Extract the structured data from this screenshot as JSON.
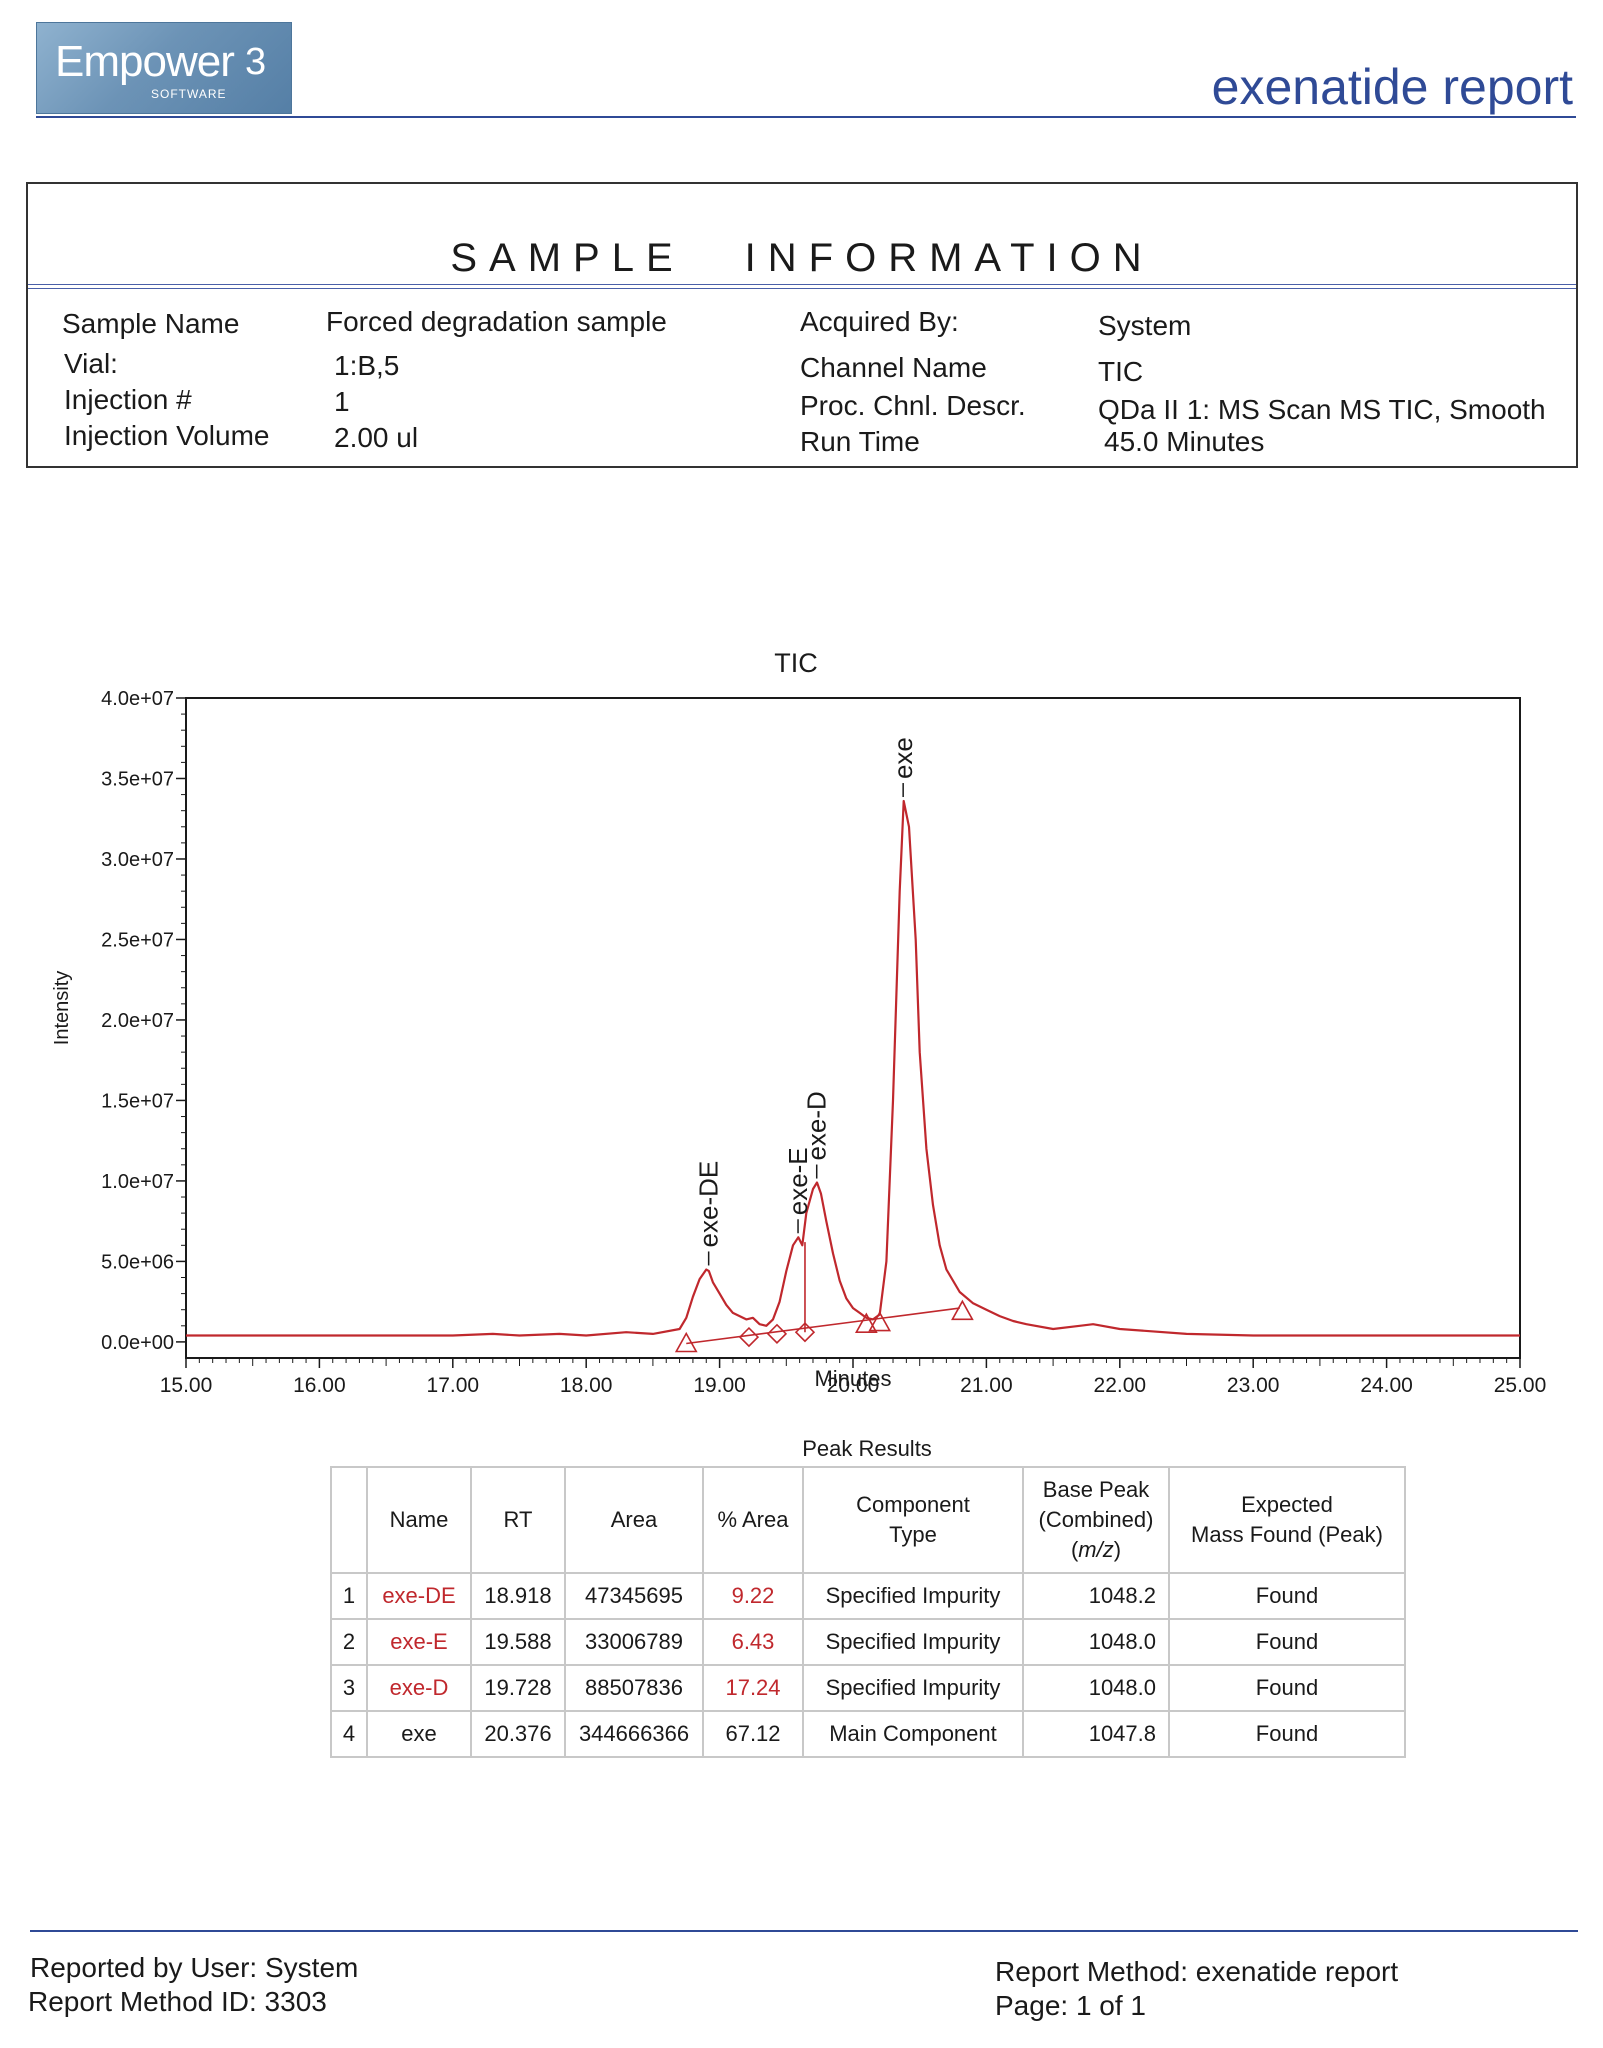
{
  "header": {
    "logo_brand": "Empower",
    "logo_version": "3",
    "logo_sub": "SOFTWARE",
    "report_title": "exenatide report"
  },
  "sample_info": {
    "title_word1": "SAMPLE",
    "title_word2": "INFORMATION",
    "left": [
      {
        "label": "Sample Name",
        "value": "Forced degradation sample"
      },
      {
        "label": "Vial:",
        "value": "1:B,5"
      },
      {
        "label": "Injection #",
        "value": "1"
      },
      {
        "label": "Injection Volume",
        "value": "2.00 ul"
      }
    ],
    "right": [
      {
        "label": "Acquired By:",
        "value": "System"
      },
      {
        "label": "Channel Name",
        "value": "TIC"
      },
      {
        "label": "Proc. Chnl. Descr.",
        "value": "QDa II 1: MS Scan MS TIC, Smooth"
      },
      {
        "label": "Run Time",
        "value": "45.0 Minutes"
      }
    ]
  },
  "chart_data": {
    "type": "line",
    "title": "TIC",
    "xlabel": "Minutes",
    "ylabel": "Intensity",
    "xlim": [
      15.0,
      25.0
    ],
    "ylim": [
      -1000000,
      40000000
    ],
    "x_ticks": [
      "15.00",
      "16.00",
      "17.00",
      "18.00",
      "19.00",
      "20.00",
      "21.00",
      "22.00",
      "23.00",
      "24.00",
      "25.00"
    ],
    "y_ticks": [
      "0.0e+00",
      "5.0e+06",
      "1.0e+07",
      "1.5e+07",
      "2.0e+07",
      "2.5e+07",
      "3.0e+07",
      "3.5e+07",
      "4.0e+07"
    ],
    "series": [
      {
        "color": "#c0282d",
        "x": [
          15.0,
          16.0,
          17.0,
          17.3,
          17.5,
          17.8,
          18.0,
          18.3,
          18.5,
          18.7,
          18.75,
          18.8,
          18.85,
          18.9,
          18.92,
          18.95,
          19.0,
          19.05,
          19.1,
          19.15,
          19.2,
          19.25,
          19.3,
          19.35,
          19.4,
          19.45,
          19.5,
          19.55,
          19.59,
          19.62,
          19.65,
          19.7,
          19.73,
          19.76,
          19.8,
          19.85,
          19.9,
          19.95,
          20.0,
          20.05,
          20.1,
          20.15,
          20.2,
          20.25,
          20.3,
          20.35,
          20.38,
          20.42,
          20.47,
          20.5,
          20.55,
          20.6,
          20.65,
          20.7,
          20.8,
          20.9,
          21.0,
          21.1,
          21.2,
          21.3,
          21.5,
          21.7,
          21.8,
          22.0,
          22.5,
          23.0,
          24.0,
          25.0
        ],
        "y": [
          400000,
          400000,
          400000,
          500000,
          400000,
          500000,
          400000,
          600000,
          500000,
          800000,
          1500000,
          2800000,
          3900000,
          4500000,
          4400000,
          3700000,
          3000000,
          2300000,
          1800000,
          1600000,
          1400000,
          1500000,
          1100000,
          1000000,
          1400000,
          2500000,
          4400000,
          6000000,
          6500000,
          6000000,
          8000000,
          9500000,
          9900000,
          9200000,
          7500000,
          5500000,
          3800000,
          2700000,
          2100000,
          1800000,
          1500000,
          1400000,
          1700000,
          5000000,
          15000000,
          28000000,
          33600000,
          32000000,
          25000000,
          18000000,
          12000000,
          8500000,
          6000000,
          4500000,
          3100000,
          2400000,
          2000000,
          1600000,
          1300000,
          1100000,
          800000,
          1000000,
          1100000,
          800000,
          500000,
          400000,
          400000,
          400000
        ]
      }
    ],
    "peak_labels": [
      {
        "name": "exe-DE",
        "x": 18.918,
        "y": 4500000
      },
      {
        "name": "exe-E",
        "x": 19.588,
        "y": 6500000
      },
      {
        "name": "exe-D",
        "x": 19.728,
        "y": 9900000
      },
      {
        "name": "exe",
        "x": 20.376,
        "y": 33600000
      }
    ],
    "baselines": [
      {
        "x": [
          18.75,
          20.8
        ],
        "y": [
          -100000,
          2100000
        ]
      }
    ],
    "drops": [
      {
        "x": 19.64,
        "y": 600000,
        "y_top": 6200000
      }
    ],
    "markers": [
      {
        "shape": "triangle",
        "x": 18.75,
        "y": -100000
      },
      {
        "shape": "diamond",
        "x": 19.22,
        "y": 300000
      },
      {
        "shape": "diamond",
        "x": 19.43,
        "y": 500000
      },
      {
        "shape": "diamond",
        "x": 19.64,
        "y": 600000
      },
      {
        "shape": "triangle",
        "x": 20.1,
        "y": 1100000
      },
      {
        "shape": "triangle",
        "x": 20.2,
        "y": 1200000
      },
      {
        "shape": "triangle",
        "x": 20.82,
        "y": 1900000
      }
    ]
  },
  "peak_results": {
    "title": "Peak Results",
    "headers": {
      "name": "Name",
      "rt": "RT",
      "area": "Area",
      "pct_area": "% Area",
      "component_line1": "Component",
      "component_line2": "Type",
      "base_line1": "Base Peak",
      "base_line2": "(Combined)",
      "base_line3": "(m/z)",
      "expected_line1": "Expected",
      "expected_line2": "Mass Found (Peak)"
    },
    "rows": [
      {
        "idx": "1",
        "name": "exe-DE",
        "rt": "18.918",
        "area": "47345695",
        "pct_area": "9.22",
        "component": "Specified Impurity",
        "base_peak": "1048.2",
        "expected": "Found",
        "highlight": true
      },
      {
        "idx": "2",
        "name": "exe-E",
        "rt": "19.588",
        "area": "33006789",
        "pct_area": "6.43",
        "component": "Specified Impurity",
        "base_peak": "1048.0",
        "expected": "Found",
        "highlight": true
      },
      {
        "idx": "3",
        "name": "exe-D",
        "rt": "19.728",
        "area": "88507836",
        "pct_area": "17.24",
        "component": "Specified Impurity",
        "base_peak": "1048.0",
        "expected": "Found",
        "highlight": true
      },
      {
        "idx": "4",
        "name": "exe",
        "rt": "20.376",
        "area": "344666366",
        "pct_area": "67.12",
        "component": "Main Component",
        "base_peak": "1047.8",
        "expected": "Found",
        "highlight": false
      }
    ]
  },
  "footer": {
    "reported_by": "Reported by User:  System",
    "method_id": "Report Method ID: 3303",
    "report_method": "Report Method:  exenatide report",
    "page": "Page: 1 of 1"
  }
}
